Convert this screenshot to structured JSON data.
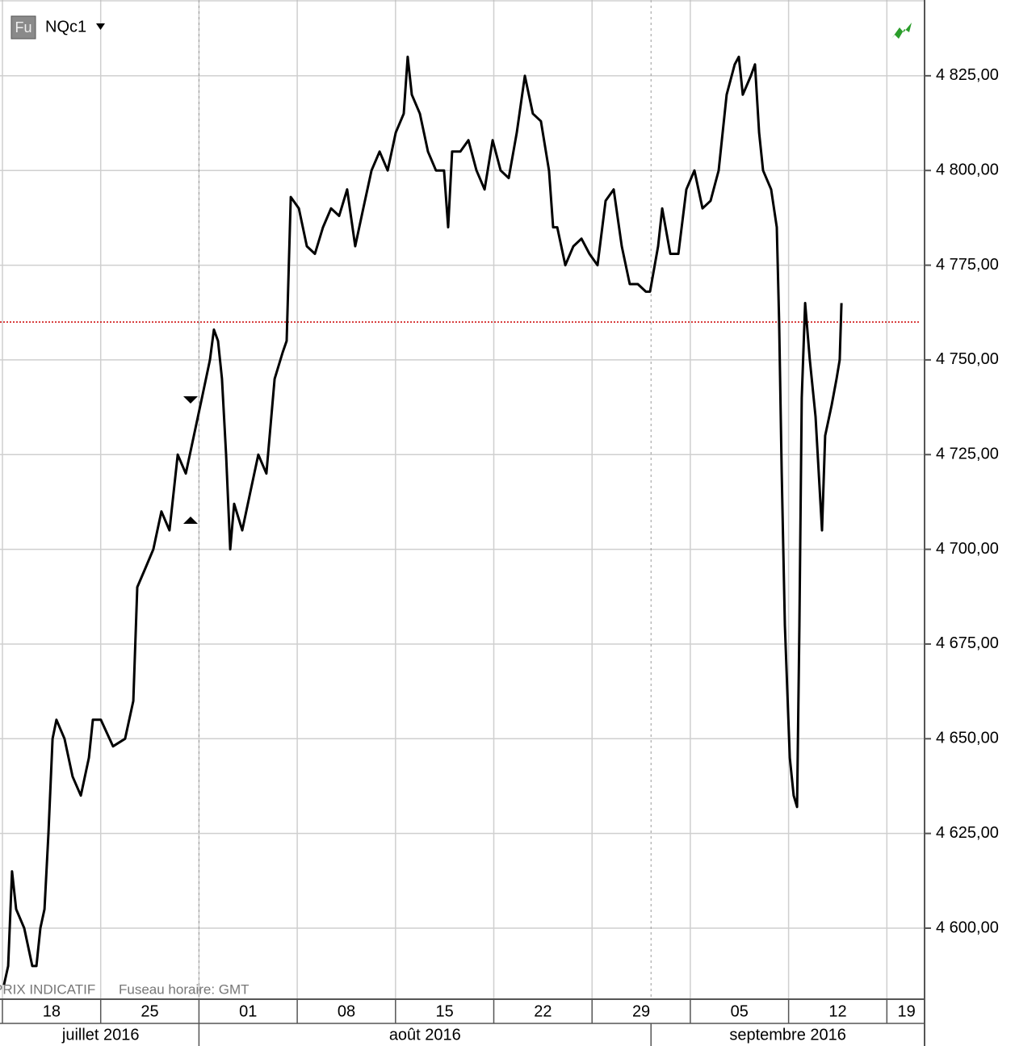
{
  "chart_data": {
    "type": "line",
    "badge": "Fu",
    "note_left": "PRIX INDICATIF",
    "note_right": "Fuseau horaire: GMT",
    "x": [
      0.08,
      0.29,
      0.49,
      0.7,
      1.11,
      1.52,
      1.73,
      1.93,
      2.14,
      2.34,
      2.55,
      2.75,
      3.16,
      3.57,
      3.99,
      4.4,
      4.6,
      5.01,
      5.63,
      6.24,
      6.66,
      6.86,
      7.27,
      7.68,
      8.09,
      8.5,
      8.92,
      9.33,
      9.74,
      10.15,
      10.56,
      10.76,
      10.97,
      11.17,
      11.38,
      11.59,
      11.79,
      12.2,
      12.61,
      13.02,
      13.43,
      13.85,
      14.26,
      14.46,
      14.67,
      15.08,
      15.49,
      15.9,
      16.31,
      16.72,
      17.13,
      17.54,
      17.95,
      18.36,
      18.78,
      19.19,
      19.6,
      20.01,
      20.42,
      20.62,
      20.83,
      21.24,
      21.65,
      22.06,
      22.47,
      22.68,
      22.88,
      23.3,
      23.71,
      24.12,
      24.53,
      24.94,
      25.35,
      25.76,
      26.17,
      26.58,
      26.99,
      27.4,
      27.81,
      28.02,
      28.23,
      28.64,
      29.05,
      29.46,
      29.87,
      30.28,
      30.69,
      31.1,
      31.51,
      31.92,
      32.33,
      32.74,
      32.95,
      33.36,
      33.57,
      33.98,
      34.39,
      34.8,
      35.21,
      35.62,
      36.03,
      36.44,
      36.85,
      37.26,
      37.47,
      37.67,
      38.08,
      38.29,
      38.5,
      38.7,
      39.11,
      39.4,
      39.52,
      39.65,
      39.81,
      40.06,
      40.26,
      40.43,
      40.55,
      40.67,
      40.84,
      41.08,
      41.37,
      41.7,
      41.86,
      42.19,
      42.44,
      42.6,
      42.69
    ],
    "series": [
      {
        "name": "NQc1",
        "color": "#000000",
        "values": [
          4585,
          4590,
          4615,
          4605,
          4600,
          4590,
          4590,
          4600,
          4605,
          4625,
          4650,
          4655,
          4650,
          4640,
          4635,
          4645,
          4655,
          4655,
          4648,
          4650,
          4660,
          4690,
          4695,
          4700,
          4710,
          4705,
          4725,
          4720,
          4730,
          4740,
          4750,
          4758,
          4755,
          4745,
          4725,
          4700,
          4712,
          4705,
          4715,
          4725,
          4720,
          4745,
          4752,
          4755,
          4793,
          4790,
          4780,
          4778,
          4785,
          4790,
          4788,
          4795,
          4780,
          4790,
          4800,
          4805,
          4800,
          4810,
          4815,
          4830,
          4820,
          4815,
          4805,
          4800,
          4800,
          4785,
          4805,
          4805,
          4808,
          4800,
          4795,
          4808,
          4800,
          4798,
          4810,
          4825,
          4815,
          4813,
          4800,
          4785,
          4785,
          4775,
          4780,
          4782,
          4778,
          4775,
          4792,
          4795,
          4780,
          4770,
          4770,
          4768,
          4768,
          4780,
          4790,
          4778,
          4778,
          4795,
          4800,
          4790,
          4792,
          4800,
          4820,
          4828,
          4830,
          4820,
          4825,
          4828,
          4810,
          4800,
          4795,
          4785,
          4760,
          4720,
          4680,
          4645,
          4635,
          4632,
          4680,
          4740,
          4765,
          4750,
          4735,
          4705,
          4730,
          4738,
          4745,
          4750,
          4765
        ]
      }
    ],
    "xlim": [
      0,
      47
    ],
    "xticks": [
      {
        "value": 0,
        "label": "18"
      },
      {
        "value": 5,
        "label": "25"
      },
      {
        "value": 10,
        "label": "01"
      },
      {
        "value": 15,
        "label": "08"
      },
      {
        "value": 20,
        "label": "15"
      },
      {
        "value": 25,
        "label": "22"
      },
      {
        "value": 30,
        "label": "29"
      },
      {
        "value": 35,
        "label": "05"
      },
      {
        "value": 40,
        "label": "12"
      },
      {
        "value": 45,
        "label": "19"
      }
    ],
    "months": [
      {
        "label": "juillet 2016",
        "start": 0,
        "end": 10
      },
      {
        "label": "août 2016",
        "start": 10,
        "end": 33
      },
      {
        "label": "septembre 2016",
        "start": 33,
        "end": 47
      }
    ],
    "ylim": [
      4581.25,
      4845
    ],
    "yticks": [
      {
        "value": 4600,
        "label": "4 600,00"
      },
      {
        "value": 4625,
        "label": "4 625,00"
      },
      {
        "value": 4650,
        "label": "4 650,00"
      },
      {
        "value": 4675,
        "label": "4 675,00"
      },
      {
        "value": 4700,
        "label": "4 700,00"
      },
      {
        "value": 4725,
        "label": "4 725,00"
      },
      {
        "value": 4750,
        "label": "4 750,00"
      },
      {
        "value": 4775,
        "label": "4 775,00"
      },
      {
        "value": 4800,
        "label": "4 800,00"
      },
      {
        "value": 4825,
        "label": "4 825,00"
      }
    ],
    "reference_line": {
      "value": 4760,
      "color": "#cc0000"
    },
    "grid": true
  }
}
